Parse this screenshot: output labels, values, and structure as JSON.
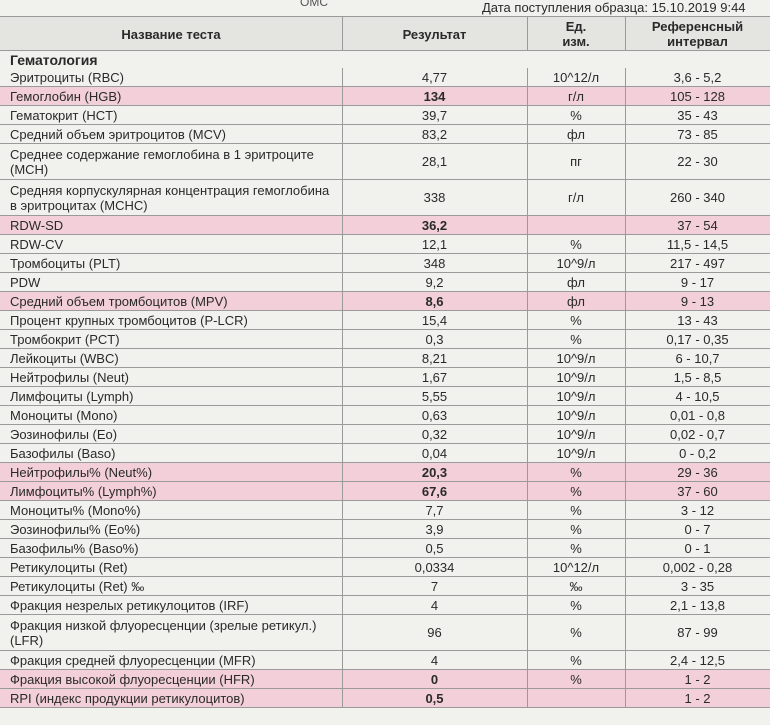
{
  "header": {
    "top_left": "ОМС",
    "date": "Дата поступления образца: 15.10.2019 9:44"
  },
  "table": {
    "columns": [
      "Название теста",
      "Результат",
      "Ед. изм.",
      "Референсный интервал"
    ],
    "section": "Гематология",
    "rows": [
      {
        "name": "Эритроциты (RBC)",
        "result": "4,77",
        "unit": "10^12/л",
        "ref": "3,6 - 5,2",
        "flagged": false
      },
      {
        "name": "Гемоглобин (HGB)",
        "result": "134",
        "unit": "г/л",
        "ref": "105 - 128",
        "flagged": true
      },
      {
        "name": "Гематокрит (HCT)",
        "result": "39,7",
        "unit": "%",
        "ref": "35 - 43",
        "flagged": false
      },
      {
        "name": "Средний объем эритроцитов (MCV)",
        "result": "83,2",
        "unit": "фл",
        "ref": "73 - 85",
        "flagged": false
      },
      {
        "name": "Среднее содержание гемоглобина в 1 эритроците (MCH)",
        "result": "28,1",
        "unit": "пг",
        "ref": "22 - 30",
        "flagged": false
      },
      {
        "name": "Средняя корпускулярная концентрация гемоглобина в эритроцитах (MCHC)",
        "result": "338",
        "unit": "г/л",
        "ref": "260 - 340",
        "flagged": false
      },
      {
        "name": "RDW-SD",
        "result": "36,2",
        "unit": null,
        "ref": "37 - 54",
        "flagged": true
      },
      {
        "name": "RDW-CV",
        "result": "12,1",
        "unit": "%",
        "ref": "11,5 - 14,5",
        "flagged": false
      },
      {
        "name": "Тромбоциты (PLT)",
        "result": "348",
        "unit": "10^9/л",
        "ref": "217 - 497",
        "flagged": false
      },
      {
        "name": "PDW",
        "result": "9,2",
        "unit": "фл",
        "ref": "9 - 17",
        "flagged": false
      },
      {
        "name": "Средний объем тромбоцитов (MPV)",
        "result": "8,6",
        "unit": "фл",
        "ref": "9 - 13",
        "flagged": true
      },
      {
        "name": "Процент крупных тромбоцитов (P-LCR)",
        "result": "15,4",
        "unit": "%",
        "ref": "13 - 43",
        "flagged": false
      },
      {
        "name": "Тромбокрит (PCT)",
        "result": "0,3",
        "unit": "%",
        "ref": "0,17 - 0,35",
        "flagged": false
      },
      {
        "name": "Лейкоциты (WBC)",
        "result": "8,21",
        "unit": "10^9/л",
        "ref": "6 - 10,7",
        "flagged": false
      },
      {
        "name": "Нейтрофилы (Neut)",
        "result": "1,67",
        "unit": "10^9/л",
        "ref": "1,5 - 8,5",
        "flagged": false
      },
      {
        "name": "Лимфоциты (Lymph)",
        "result": "5,55",
        "unit": "10^9/л",
        "ref": "4 - 10,5",
        "flagged": false
      },
      {
        "name": "Моноциты (Mono)",
        "result": "0,63",
        "unit": "10^9/л",
        "ref": "0,01 - 0,8",
        "flagged": false
      },
      {
        "name": "Эозинофилы (Eo)",
        "result": "0,32",
        "unit": "10^9/л",
        "ref": "0,02 - 0,7",
        "flagged": false
      },
      {
        "name": "Базофилы (Baso)",
        "result": "0,04",
        "unit": "10^9/л",
        "ref": "0 - 0,2",
        "flagged": false
      },
      {
        "name": "Нейтрофилы% (Neut%)",
        "result": "20,3",
        "unit": "%",
        "ref": "29 - 36",
        "flagged": true
      },
      {
        "name": "Лимфоциты% (Lymph%)",
        "result": "67,6",
        "unit": "%",
        "ref": "37 - 60",
        "flagged": true
      },
      {
        "name": "Моноциты% (Mono%)",
        "result": "7,7",
        "unit": "%",
        "ref": "3 - 12",
        "flagged": false
      },
      {
        "name": "Эозинофилы% (Eo%)",
        "result": "3,9",
        "unit": "%",
        "ref": "0 - 7",
        "flagged": false
      },
      {
        "name": "Базофилы% (Baso%)",
        "result": "0,5",
        "unit": "%",
        "ref": "0 - 1",
        "flagged": false
      },
      {
        "name": "Ретикулоциты (Ret)",
        "result": "0,0334",
        "unit": "10^12/л",
        "ref": "0,002 - 0,28",
        "flagged": false
      },
      {
        "name": "Ретикулоциты (Ret) ‰",
        "result": "7",
        "unit": "‰",
        "ref": "3 - 35",
        "flagged": false
      },
      {
        "name": "Фракция незрелых ретикулоцитов (IRF)",
        "result": "4",
        "unit": "%",
        "ref": "2,1 - 13,8",
        "flagged": false
      },
      {
        "name": "Фракция низкой флуоресценции (зрелые ретикул.) (LFR)",
        "result": "96",
        "unit": "%",
        "ref": "87 - 99",
        "flagged": false
      },
      {
        "name": "Фракция средней флуоресценции (MFR)",
        "result": "4",
        "unit": "%",
        "ref": "2,4 - 12,5",
        "flagged": false
      },
      {
        "name": "Фракция высокой флуоресценции (HFR)",
        "result": "0",
        "unit": "%",
        "ref": "1 - 2",
        "flagged": true
      },
      {
        "name": "RPI (индекс продукции ретикулоцитов)",
        "result": "0,5",
        "unit": null,
        "ref": "1 - 2",
        "flagged": true
      }
    ]
  }
}
